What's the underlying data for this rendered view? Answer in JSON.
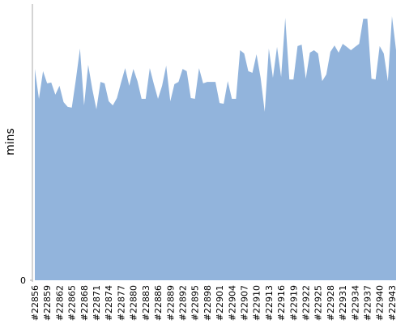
{
  "chart_data": {
    "type": "area",
    "y_label": "mins",
    "color": "#92b4dc",
    "categories": [
      "#22856",
      null,
      null,
      "#22859",
      null,
      null,
      "#22862",
      null,
      null,
      "#22865",
      null,
      null,
      "#22868",
      null,
      null,
      "#22871",
      null,
      null,
      "#22874",
      null,
      null,
      "#22877",
      null,
      null,
      "#22880",
      null,
      null,
      "#22883",
      null,
      null,
      "#22886",
      null,
      null,
      "#22889",
      null,
      null,
      "#22892",
      null,
      null,
      "#22895",
      null,
      null,
      "#22898",
      null,
      null,
      "#22901",
      null,
      null,
      "#22904",
      null,
      null,
      "#22907",
      null,
      null,
      "#22910",
      null,
      null,
      "#22913",
      null,
      null,
      "#22916",
      null,
      null,
      "#22919",
      null,
      null,
      "#22922",
      null,
      null,
      "#22925",
      null,
      null,
      "#22928",
      null,
      null,
      "#22931",
      null,
      null,
      "#22934",
      null,
      null,
      "#22937",
      null,
      null,
      "#22940",
      null,
      null,
      "#22943",
      null
    ],
    "values": [
      76.5,
      65.7,
      75.7,
      71.3,
      71.6,
      67.2,
      70.4,
      64.5,
      62.8,
      62.5,
      72.7,
      83.9,
      63.3,
      78.0,
      69.2,
      61.9,
      71.8,
      71.3,
      64.8,
      63.3,
      66.0,
      71.6,
      76.8,
      70.4,
      76.5,
      72.1,
      65.7,
      65.7,
      76.8,
      71.0,
      65.7,
      70.4,
      77.7,
      64.8,
      71.0,
      71.8,
      76.5,
      75.7,
      66.0,
      65.7,
      76.8,
      71.3,
      71.8,
      71.8,
      71.8,
      64.2,
      63.9,
      72.1,
      65.7,
      65.7,
      83.3,
      82.1,
      75.7,
      75.1,
      81.8,
      73.3,
      61.0,
      83.9,
      73.3,
      84.5,
      73.6,
      95.0,
      72.7,
      72.7,
      84.8,
      85.3,
      73.0,
      82.4,
      83.3,
      82.1,
      72.1,
      74.5,
      82.7,
      85.0,
      82.4,
      85.6,
      84.5,
      83.3,
      84.5,
      85.6,
      94.7,
      94.7,
      73.0,
      72.7,
      84.8,
      82.1,
      72.1,
      95.6,
      83.3
    ],
    "ylim": [
      0,
      100
    ],
    "yticks": [
      0
    ]
  }
}
